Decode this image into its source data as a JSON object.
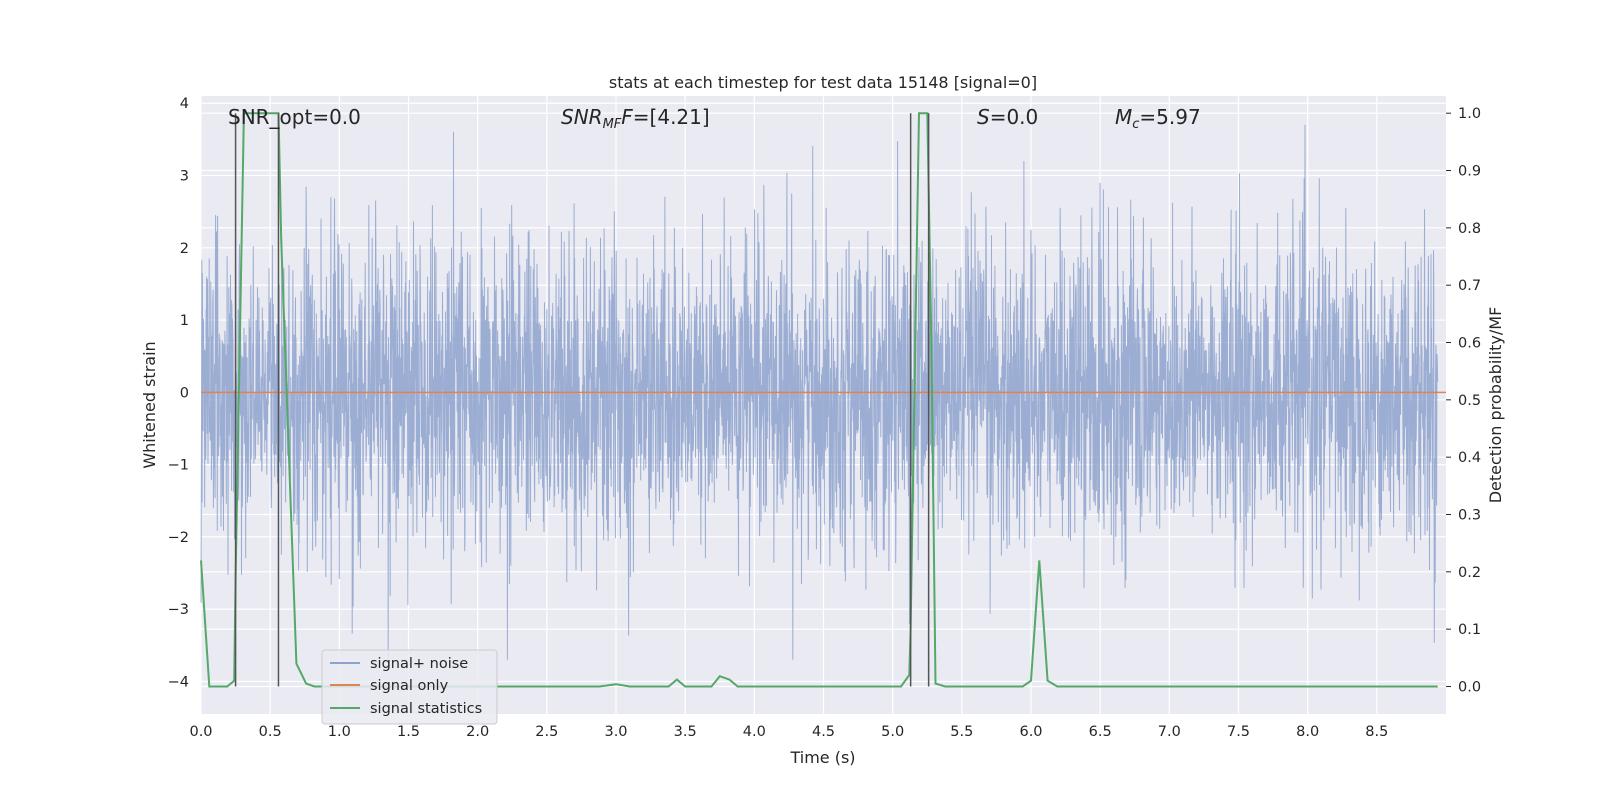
{
  "chart_data": {
    "type": "line",
    "title": "stats at each timestep for test data 15148 [signal=0]",
    "xlabel": "Time (s)",
    "ylabel": "Whitened strain",
    "y2label": "Detection probability/MF",
    "xlim": [
      0.0,
      9.0
    ],
    "ylim": [
      -4.45,
      4.1
    ],
    "y2lim": [
      -0.048,
      1.03
    ],
    "xticks": [
      "0.0",
      "0.5",
      "1.0",
      "1.5",
      "2.0",
      "2.5",
      "3.0",
      "3.5",
      "4.0",
      "4.5",
      "5.0",
      "5.5",
      "6.0",
      "6.5",
      "7.0",
      "7.5",
      "8.0",
      "8.5"
    ],
    "yticks": [
      "4",
      "3",
      "2",
      "1",
      "0",
      "−1",
      "−2",
      "−3",
      "−4"
    ],
    "y2ticks": [
      "1.0",
      "0.9",
      "0.8",
      "0.7",
      "0.6",
      "0.5",
      "0.4",
      "0.3",
      "0.2",
      "0.1",
      "0.0"
    ],
    "grid": true,
    "legend_position": "lower-left",
    "annotations": {
      "snr_opt": "SNR_opt=0.0",
      "snr_mf_main": "SNR",
      "snr_mf_sub": "MF",
      "snr_mf_value": "=[4.21]",
      "s_main": "S",
      "s_value": "=0.0",
      "mc_main": "M",
      "mc_sub": "c",
      "mc_value": "=5.97"
    },
    "series": [
      {
        "name": "signal+ noise",
        "color": "#8da2cc",
        "axis": "left",
        "description_values": "whitened noise, roughly uniform amplitude ~±2.3 with peaks to ~±3.7",
        "envelope_peak": 3.7
      },
      {
        "name": "signal only",
        "color": "#dd8452",
        "axis": "left",
        "x": [
          0.0,
          9.0
        ],
        "y": [
          0.0,
          0.0
        ]
      },
      {
        "name": "signal statistics",
        "color": "#55a868",
        "axis": "right",
        "x": [
          0.0,
          0.06,
          0.19,
          0.24,
          0.25,
          0.31,
          0.56,
          0.58,
          0.69,
          0.76,
          0.82,
          2.88,
          3.0,
          3.1,
          3.38,
          3.44,
          3.5,
          3.69,
          3.75,
          3.82,
          3.88,
          5.06,
          5.12,
          5.13,
          5.19,
          5.25,
          5.28,
          5.31,
          5.38,
          5.94,
          6.0,
          6.06,
          6.12,
          6.19,
          8.94
        ],
        "y": [
          0.22,
          0.0,
          0.0,
          0.01,
          0.19,
          1.0,
          1.0,
          0.78,
          0.04,
          0.005,
          0.0,
          0.0,
          0.004,
          0.0,
          0.0,
          0.012,
          0.0,
          0.0,
          0.018,
          0.012,
          0.0,
          0.0,
          0.02,
          0.1,
          1.0,
          1.0,
          0.6,
          0.005,
          0.0,
          0.0,
          0.01,
          0.22,
          0.01,
          0.0,
          0.0
        ]
      }
    ],
    "vertical_markers": {
      "color": "#555555",
      "x": [
        0.25,
        0.56,
        5.13,
        5.26
      ],
      "y2_top": 1.0,
      "y2_bottom": 0.0
    }
  }
}
